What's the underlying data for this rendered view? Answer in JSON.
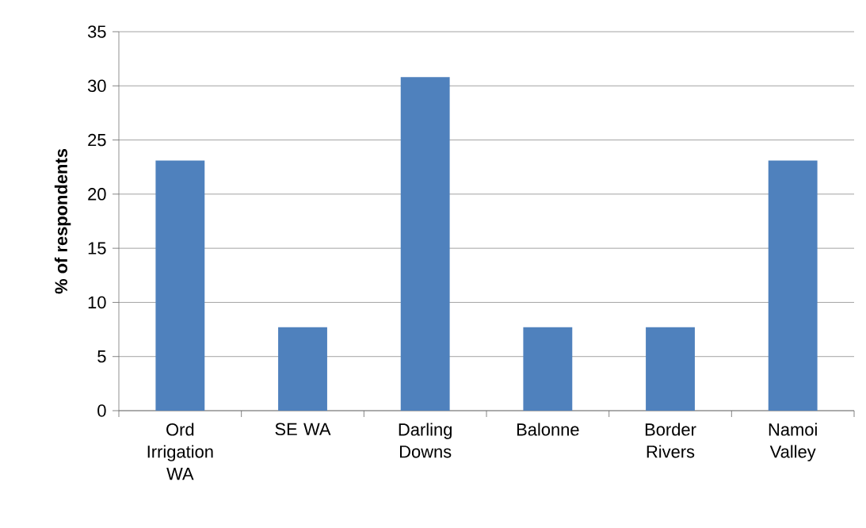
{
  "chart_data": {
    "type": "bar",
    "ylabel": "% of respondents",
    "categories": [
      "Ord Irrigation WA",
      "SE WA",
      "Darling Downs",
      "Balonne",
      "Border Rivers",
      "Namoi Valley"
    ],
    "values": [
      23.1,
      7.7,
      30.8,
      7.7,
      7.7,
      23.1
    ],
    "color": "#4f81bd",
    "ylim": [
      0,
      35
    ],
    "yticks": [
      0,
      5,
      10,
      15,
      20,
      25,
      30,
      35
    ],
    "grid": "y"
  }
}
